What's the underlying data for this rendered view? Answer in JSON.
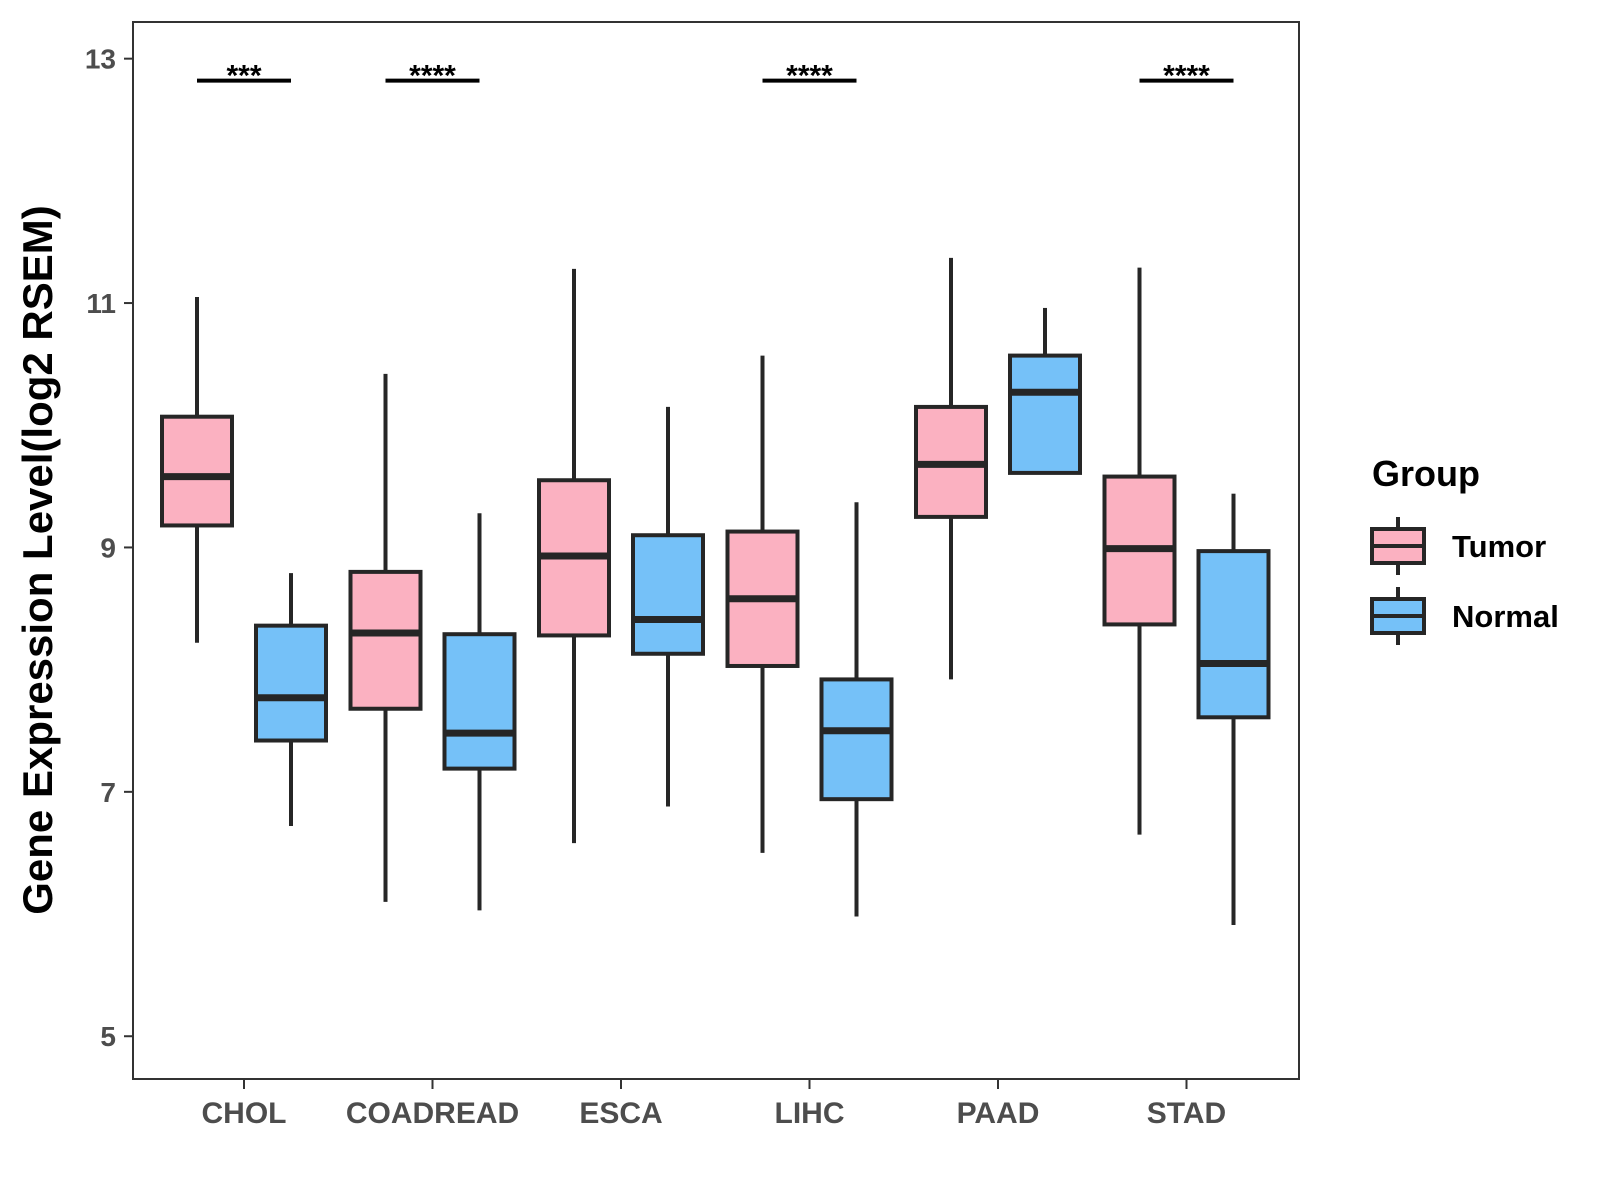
{
  "chart_data": {
    "type": "boxplot",
    "title": "",
    "xlabel": "",
    "ylabel": "Gene Expression Level(log2 RSEM)",
    "ylim": [
      4.65,
      13.3
    ],
    "yticks": [
      5,
      7,
      9,
      11,
      13
    ],
    "grid": false,
    "legend": {
      "title": "Group",
      "position": "right",
      "entries": [
        "Tumor",
        "Normal"
      ]
    },
    "colors": {
      "Tumor": "#fbb1c1",
      "Normal": "#75c1f8",
      "outline": "#262626"
    },
    "categories": [
      "CHOL",
      "COADREAD",
      "ESCA",
      "LIHC",
      "PAAD",
      "STAD"
    ],
    "series": [
      {
        "name": "Tumor",
        "boxes": [
          {
            "whisker_low": 8.22,
            "q1": 9.18,
            "median": 9.58,
            "q3": 10.07,
            "whisker_high": 11.05
          },
          {
            "whisker_low": 6.1,
            "q1": 7.68,
            "median": 8.3,
            "q3": 8.8,
            "whisker_high": 10.42
          },
          {
            "whisker_low": 6.58,
            "q1": 8.28,
            "median": 8.93,
            "q3": 9.55,
            "whisker_high": 11.28
          },
          {
            "whisker_low": 6.5,
            "q1": 8.03,
            "median": 8.58,
            "q3": 9.13,
            "whisker_high": 10.57
          },
          {
            "whisker_low": 7.92,
            "q1": 9.25,
            "median": 9.68,
            "q3": 10.15,
            "whisker_high": 11.37
          },
          {
            "whisker_low": 6.65,
            "q1": 8.37,
            "median": 8.99,
            "q3": 9.58,
            "whisker_high": 11.29
          }
        ]
      },
      {
        "name": "Normal",
        "boxes": [
          {
            "whisker_low": 6.72,
            "q1": 7.42,
            "median": 7.77,
            "q3": 8.36,
            "whisker_high": 8.79
          },
          {
            "whisker_low": 6.03,
            "q1": 7.19,
            "median": 7.48,
            "q3": 8.29,
            "whisker_high": 9.28
          },
          {
            "whisker_low": 6.88,
            "q1": 8.13,
            "median": 8.41,
            "q3": 9.1,
            "whisker_high": 10.15
          },
          {
            "whisker_low": 5.98,
            "q1": 6.94,
            "median": 7.5,
            "q3": 7.92,
            "whisker_high": 9.37
          },
          {
            "whisker_low": 9.61,
            "q1": 9.61,
            "median": 10.27,
            "q3": 10.57,
            "whisker_high": 10.96
          },
          {
            "whisker_low": 5.91,
            "q1": 7.61,
            "median": 8.05,
            "q3": 8.97,
            "whisker_high": 9.44
          }
        ]
      }
    ],
    "annotations": [
      {
        "category": "CHOL",
        "text": "***",
        "y": 12.82
      },
      {
        "category": "COADREAD",
        "text": "****",
        "y": 12.82
      },
      {
        "category": "LIHC",
        "text": "****",
        "y": 12.82
      },
      {
        "category": "STAD",
        "text": "****",
        "y": 12.82
      }
    ]
  }
}
